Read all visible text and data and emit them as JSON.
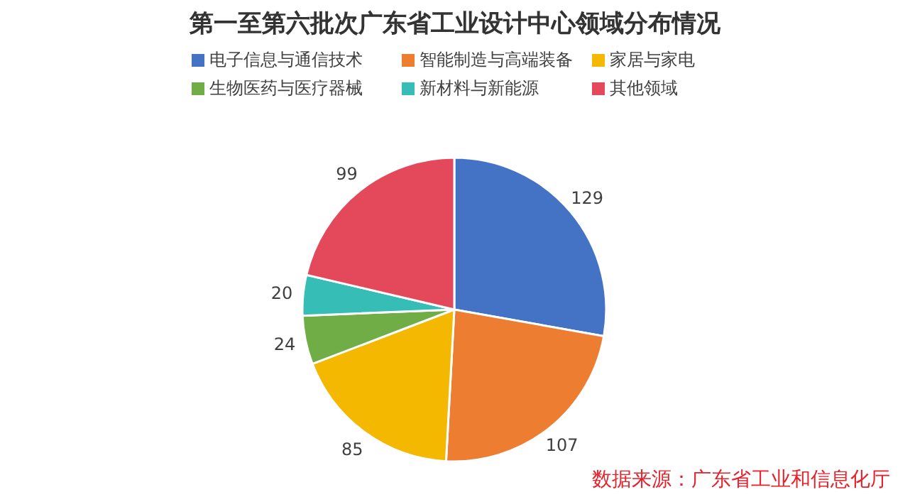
{
  "chart_data": {
    "type": "pie",
    "title": "第一至第六批次广东省工业设计中心领域分布情况",
    "categories": [
      "电子信息与通信技术",
      "智能制造与高端装备",
      "家居与家电",
      "生物医药与医疗器械",
      "新材料与新能源",
      "其他领域"
    ],
    "values": [
      129,
      107,
      85,
      24,
      20,
      99
    ],
    "colors": [
      "#4472c4",
      "#ed7d31",
      "#f5b800",
      "#70ad47",
      "#36bdb5",
      "#e4485b"
    ],
    "data_labels": true,
    "legend": "top",
    "annotations": [
      "数据来源：广东省工业和信息化厅"
    ]
  }
}
